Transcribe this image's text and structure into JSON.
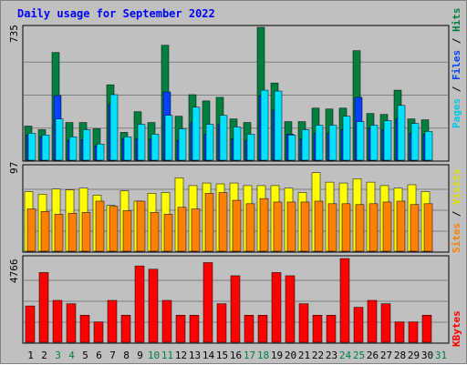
{
  "title": "Daily usage for September 2022",
  "colors": {
    "hits": "#008040",
    "files": "#0040ff",
    "pages": "#00e0ff",
    "visits": "#ffff00",
    "sites": "#ff8000",
    "kbytes": "#ff0000",
    "weekday": "#000000",
    "weekend": "#008040",
    "sep": "#000000"
  },
  "chart_data": [
    {
      "type": "bar",
      "panel": "hits-files-pages",
      "ymax_label": "735",
      "ylim": [
        0,
        735
      ],
      "categories": [
        "1",
        "2",
        "3",
        "4",
        "5",
        "6",
        "7",
        "8",
        "9",
        "10",
        "11",
        "12",
        "13",
        "14",
        "15",
        "16",
        "17",
        "18",
        "19",
        "20",
        "21",
        "22",
        "23",
        "24",
        "25",
        "26",
        "27",
        "28",
        "29",
        "30",
        "31"
      ],
      "weekend": [
        false,
        false,
        true,
        true,
        false,
        false,
        false,
        false,
        false,
        true,
        true,
        false,
        false,
        false,
        false,
        false,
        true,
        true,
        false,
        false,
        false,
        false,
        false,
        true,
        true,
        false,
        false,
        false,
        false,
        false,
        true
      ],
      "series": [
        {
          "name": "Hits",
          "values": [
            190,
            170,
            600,
            210,
            210,
            175,
            420,
            155,
            270,
            210,
            640,
            245,
            365,
            330,
            350,
            230,
            210,
            740,
            430,
            215,
            215,
            290,
            285,
            290,
            610,
            260,
            255,
            390,
            230,
            225,
            0
          ]
        },
        {
          "name": "Files",
          "values": [
            140,
            130,
            360,
            110,
            115,
            80,
            310,
            120,
            120,
            120,
            380,
            110,
            210,
            145,
            200,
            120,
            110,
            360,
            280,
            145,
            120,
            150,
            150,
            170,
            350,
            180,
            170,
            230,
            150,
            145,
            0
          ]
        },
        {
          "name": "Pages",
          "values": [
            150,
            140,
            230,
            130,
            170,
            90,
            365,
            130,
            200,
            145,
            250,
            175,
            295,
            200,
            250,
            185,
            145,
            390,
            385,
            140,
            170,
            195,
            195,
            245,
            215,
            195,
            220,
            305,
            205,
            160,
            0
          ]
        }
      ],
      "side_labels": [
        "Pages",
        "Files",
        "Hits"
      ]
    },
    {
      "type": "bar",
      "panel": "visits-sites",
      "ymax_label": "97",
      "ylim": [
        0,
        97
      ],
      "categories": [
        "1",
        "2",
        "3",
        "4",
        "5",
        "6",
        "7",
        "8",
        "9",
        "10",
        "11",
        "12",
        "13",
        "14",
        "15",
        "16",
        "17",
        "18",
        "19",
        "20",
        "21",
        "22",
        "23",
        "24",
        "25",
        "26",
        "27",
        "28",
        "29",
        "30",
        "31"
      ],
      "series": [
        {
          "name": "Visits",
          "values": [
            69,
            66,
            72,
            71,
            73,
            65,
            53,
            70,
            58,
            67,
            68,
            85,
            76,
            79,
            78,
            79,
            76,
            76,
            76,
            73,
            68,
            91,
            80,
            79,
            84,
            80,
            76,
            73,
            77,
            69,
            0
          ]
        },
        {
          "name": "Sites",
          "values": [
            49,
            46,
            43,
            44,
            45,
            58,
            52,
            47,
            58,
            45,
            43,
            51,
            49,
            67,
            68,
            59,
            55,
            61,
            57,
            57,
            57,
            58,
            55,
            55,
            54,
            55,
            57,
            58,
            54,
            55,
            0
          ]
        }
      ],
      "side_labels": [
        "Sites",
        "Visits"
      ]
    },
    {
      "type": "bar",
      "panel": "kbytes",
      "ymax_label": "4766",
      "ylim": [
        0,
        4766
      ],
      "categories": [
        "1",
        "2",
        "3",
        "4",
        "5",
        "6",
        "7",
        "8",
        "9",
        "10",
        "11",
        "12",
        "13",
        "14",
        "15",
        "16",
        "17",
        "18",
        "19",
        "20",
        "21",
        "22",
        "23",
        "24",
        "25",
        "26",
        "27",
        "28",
        "29",
        "30",
        "31"
      ],
      "series": [
        {
          "name": "KBytes",
          "values": [
            2066,
            3968,
            2384,
            2194,
            1540,
            1160,
            2384,
            1540,
            4344,
            4155,
            2384,
            1540,
            1540,
            4533,
            2194,
            3785,
            1540,
            1540,
            3968,
            3785,
            2194,
            1540,
            1540,
            4766,
            1990,
            2384,
            2194,
            1160,
            1160,
            1540,
            0
          ]
        }
      ],
      "side_labels": [
        "KBytes"
      ]
    }
  ]
}
